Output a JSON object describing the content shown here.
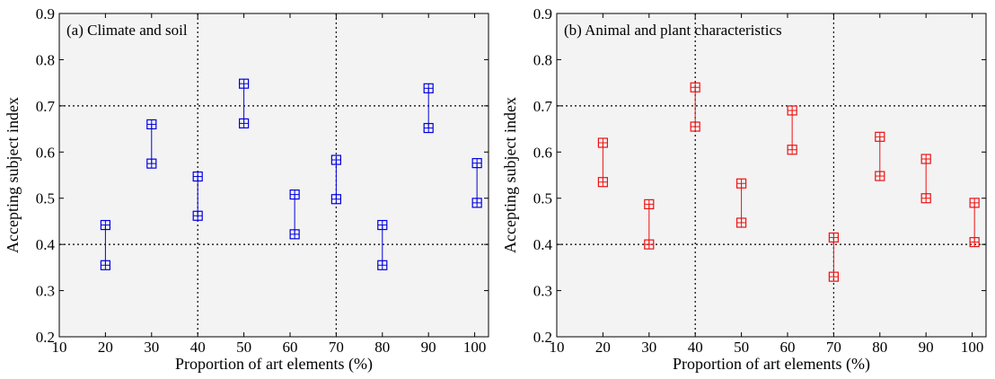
{
  "chart_data": [
    {
      "type": "range",
      "title": "(a) Climate and soil",
      "xlabel": "Proportion of art elements (%)",
      "ylabel": "Accepting subject index",
      "xlim": [
        10,
        103
      ],
      "ylim": [
        0.2,
        0.9
      ],
      "xticks": [
        10,
        20,
        30,
        40,
        50,
        60,
        70,
        80,
        90,
        100
      ],
      "yticks": [
        0.2,
        0.3,
        0.4,
        0.5,
        0.6,
        0.7,
        0.8,
        0.9
      ],
      "xtick_labels": [
        "10",
        "20",
        "30",
        "40",
        "50",
        "60",
        "70",
        "80",
        "90",
        "100"
      ],
      "ytick_labels": [
        "0.2",
        "0.3",
        "0.4",
        "0.5",
        "0.6",
        "0.7",
        "0.8",
        "0.9"
      ],
      "reference_lines": {
        "x": [
          40,
          70
        ],
        "y": [
          0.4,
          0.7
        ]
      },
      "color": "#0000e0",
      "background": "#f3f3f3",
      "x": [
        20,
        30,
        40,
        50,
        61,
        70,
        80,
        90,
        100.5
      ],
      "lower": [
        0.355,
        0.575,
        0.462,
        0.662,
        0.422,
        0.498,
        0.355,
        0.652,
        0.49
      ],
      "upper": [
        0.442,
        0.66,
        0.547,
        0.748,
        0.508,
        0.583,
        0.442,
        0.738,
        0.576
      ]
    },
    {
      "type": "range",
      "title": "(b) Animal and plant characteristics",
      "xlabel": "Proportion of art elements (%)",
      "ylabel": "Accepting subject index",
      "xlim": [
        10,
        103
      ],
      "ylim": [
        0.2,
        0.9
      ],
      "xticks": [
        10,
        20,
        30,
        40,
        50,
        60,
        70,
        80,
        90,
        100
      ],
      "yticks": [
        0.2,
        0.3,
        0.4,
        0.5,
        0.6,
        0.7,
        0.8,
        0.9
      ],
      "xtick_labels": [
        "10",
        "20",
        "30",
        "40",
        "50",
        "60",
        "70",
        "80",
        "90",
        "100"
      ],
      "ytick_labels": [
        "0.2",
        "0.3",
        "0.4",
        "0.5",
        "0.6",
        "0.7",
        "0.8",
        "0.9"
      ],
      "reference_lines": {
        "x": [
          40,
          70
        ],
        "y": [
          0.4,
          0.7
        ]
      },
      "color": "#ee1111",
      "background": "#f3f3f3",
      "x": [
        20,
        30,
        40,
        50,
        61,
        70,
        80,
        90,
        100.5
      ],
      "lower": [
        0.535,
        0.4,
        0.655,
        0.447,
        0.605,
        0.33,
        0.548,
        0.5,
        0.405
      ],
      "upper": [
        0.62,
        0.487,
        0.74,
        0.532,
        0.69,
        0.415,
        0.633,
        0.585,
        0.49
      ]
    }
  ]
}
